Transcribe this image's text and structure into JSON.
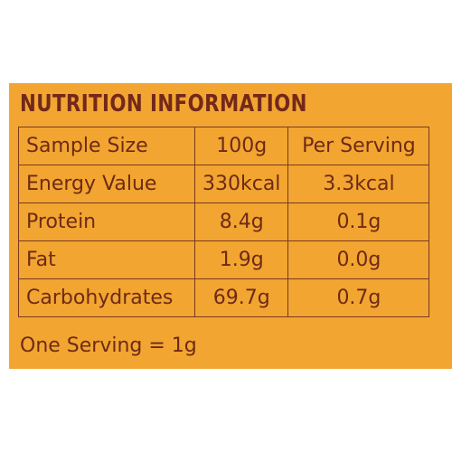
{
  "title": "NUTRITION INFORMATION",
  "table": {
    "rows": [
      [
        "Sample Size",
        "100g",
        "Per Serving"
      ],
      [
        "Energy Value",
        "330kcal",
        "3.3kcal"
      ],
      [
        "Protein",
        "8.4g",
        "0.1g"
      ],
      [
        "Fat",
        "1.9g",
        "0.0g"
      ],
      [
        "Carbohydrates",
        "69.7g",
        "0.7g"
      ]
    ]
  },
  "footer": "One Serving = 1g"
}
